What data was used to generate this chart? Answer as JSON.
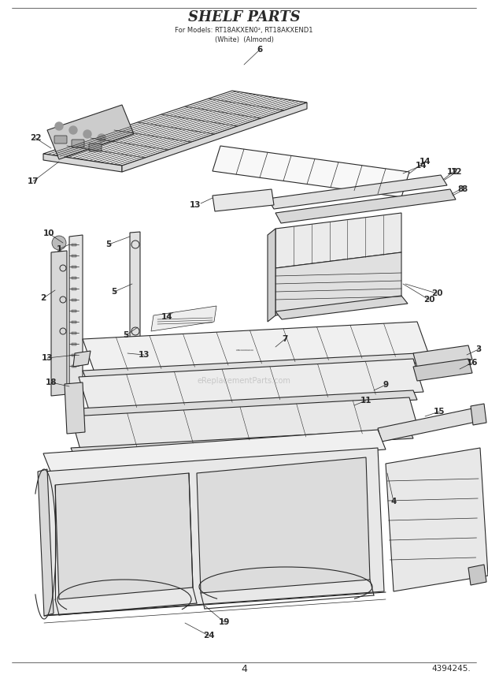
{
  "title": "SHELF PARTS",
  "subtitle_line1": "For Models: RT18AKXEN0², RT18AKXEND1",
  "subtitle_line2": "(White)  (Almond)",
  "page_number": "4",
  "part_number": "4394245.",
  "watermark": "eReplacementParts.com",
  "bg_color": "#ffffff",
  "line_color": "#2a2a2a",
  "figsize": [
    6.2,
    8.56
  ],
  "dpi": 100
}
